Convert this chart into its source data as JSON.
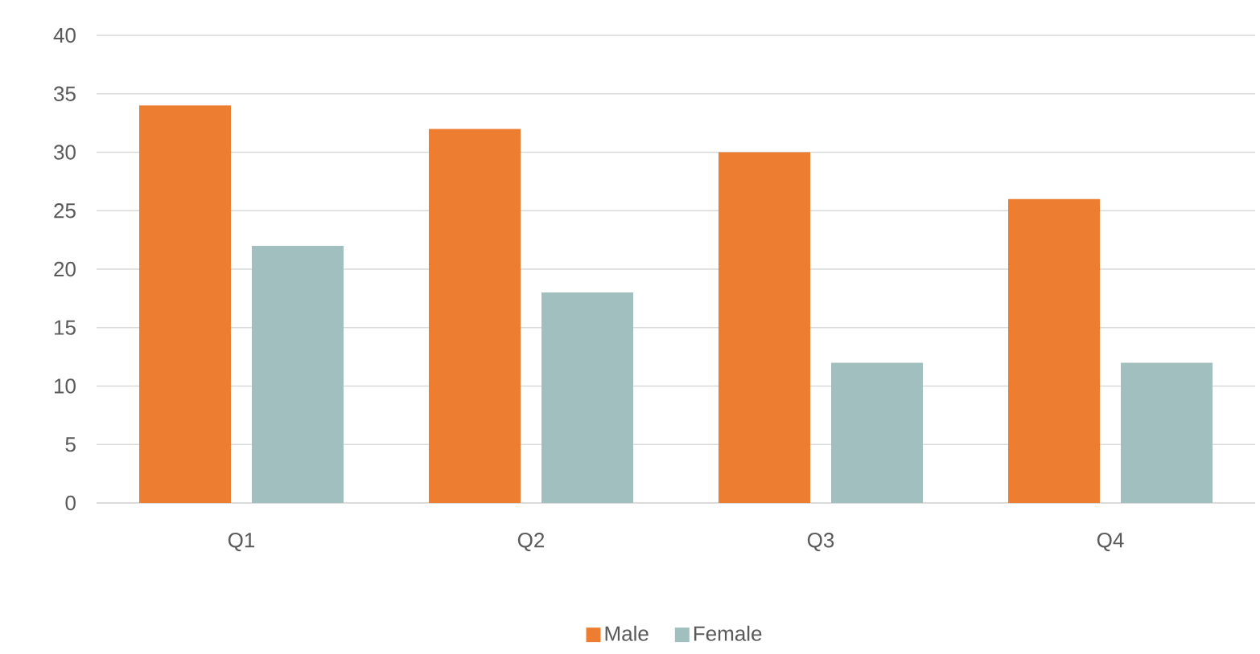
{
  "chart_data": {
    "type": "bar",
    "categories": [
      "Q1",
      "Q2",
      "Q3",
      "Q4"
    ],
    "series": [
      {
        "name": "Male",
        "color": "#ed7d31",
        "values": [
          34,
          32,
          30,
          26
        ]
      },
      {
        "name": "Female",
        "color": "#a2bfbf",
        "values": [
          22,
          18,
          12,
          12
        ]
      }
    ],
    "ylim": [
      0,
      40
    ],
    "yticks": [
      0,
      5,
      10,
      15,
      20,
      25,
      30,
      35,
      40
    ],
    "grid": "y",
    "legend": "bottom"
  }
}
